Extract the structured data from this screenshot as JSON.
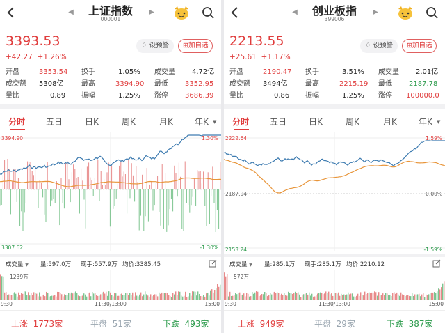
{
  "colors": {
    "up": "#e03c3c",
    "down": "#2a9a4a",
    "flat": "#b8c4cc",
    "price_line": "#3d7bb0",
    "avg_line": "#e8953a"
  },
  "panels": [
    {
      "title": "上证指数",
      "code": "000001",
      "price": "3393.53",
      "change": "+42.27",
      "change_pct": "+1.26%",
      "alert_label": "设预警",
      "add_label": "加自选",
      "stats": {
        "open_label": "开盘",
        "open": "3353.54",
        "turnover_label": "换手",
        "turnover": "1.05%",
        "volume_label": "成交量",
        "volume": "4.72亿",
        "amount_label": "成交额",
        "amount": "5308亿",
        "high_label": "最高",
        "high": "3394.90",
        "low_label": "最低",
        "low": "3352.95",
        "ratio_label": "量比",
        "ratio": "0.89",
        "amplitude_label": "振幅",
        "amplitude": "1.25%",
        "limit_label": "涨停",
        "limit": "3686.39"
      },
      "tabs": [
        "分时",
        "五日",
        "日K",
        "周K",
        "月K",
        "年K"
      ],
      "axis": {
        "top": "3394.90",
        "bottom": "3307.62",
        "top_pct": "1.30%",
        "bottom_pct": "-1.30%"
      },
      "vol_summary": {
        "menu": "成交量",
        "volume": "量:597.0万",
        "current": "现手:557.9万",
        "avg": "均价:3385.45"
      },
      "vol_max": "1239万",
      "time_axis": {
        "start": "9:30",
        "mid": "11:30/13:00",
        "end": "15:00"
      },
      "breadth": {
        "up_label": "上涨",
        "up": "1773家",
        "flat_label": "平盘",
        "flat": "51家",
        "down_label": "下跌",
        "down": "493家"
      },
      "chart_data": {
        "type": "line",
        "x": [
          "9:30",
          "11:30/13:00",
          "15:00"
        ],
        "series": [],
        "ylim": [
          3307.62,
          3394.9
        ],
        "y_pct_lim": [
          -1.3,
          1.3
        ]
      }
    },
    {
      "title": "创业板指",
      "code": "399006",
      "price": "2213.55",
      "change": "+25.61",
      "change_pct": "+1.17%",
      "alert_label": "设预警",
      "add_label": "加自选",
      "stats": {
        "open_label": "开盘",
        "open": "2190.47",
        "turnover_label": "换手",
        "turnover": "3.51%",
        "volume_label": "成交量",
        "volume": "2.01亿",
        "amount_label": "成交额",
        "amount": "3494亿",
        "high_label": "最高",
        "high": "2215.19",
        "low_label": "最低",
        "low": "2187.78",
        "ratio_label": "量比",
        "ratio": "0.86",
        "amplitude_label": "振幅",
        "amplitude": "1.25%",
        "limit_label": "涨停",
        "limit": "100000.0"
      },
      "tabs": [
        "分时",
        "五日",
        "日K",
        "周K",
        "月K",
        "年K"
      ],
      "axis": {
        "top": "2222.64",
        "mid": "2187.94",
        "bottom": "2153.24",
        "top_pct": "1.59%",
        "mid_pct": "0.00%",
        "bottom_pct": "-1.59%"
      },
      "vol_summary": {
        "menu": "成交量",
        "volume": "量:285.1万",
        "current": "现手:285.1万",
        "avg": "均价:2210.12"
      },
      "vol_max": "572万",
      "time_axis": {
        "start": "9:30",
        "mid": "11:30/13:00",
        "end": "15:00"
      },
      "breadth": {
        "up_label": "上涨",
        "up": "949家",
        "flat_label": "平盘",
        "flat": "29家",
        "down_label": "下跌",
        "down": "387家"
      },
      "chart_data": {
        "type": "line",
        "x": [
          "9:30",
          "11:30/13:00",
          "15:00"
        ],
        "series": [],
        "ylim": [
          2153.24,
          2222.64
        ],
        "y_pct_lim": [
          -1.59,
          1.59
        ]
      }
    }
  ]
}
